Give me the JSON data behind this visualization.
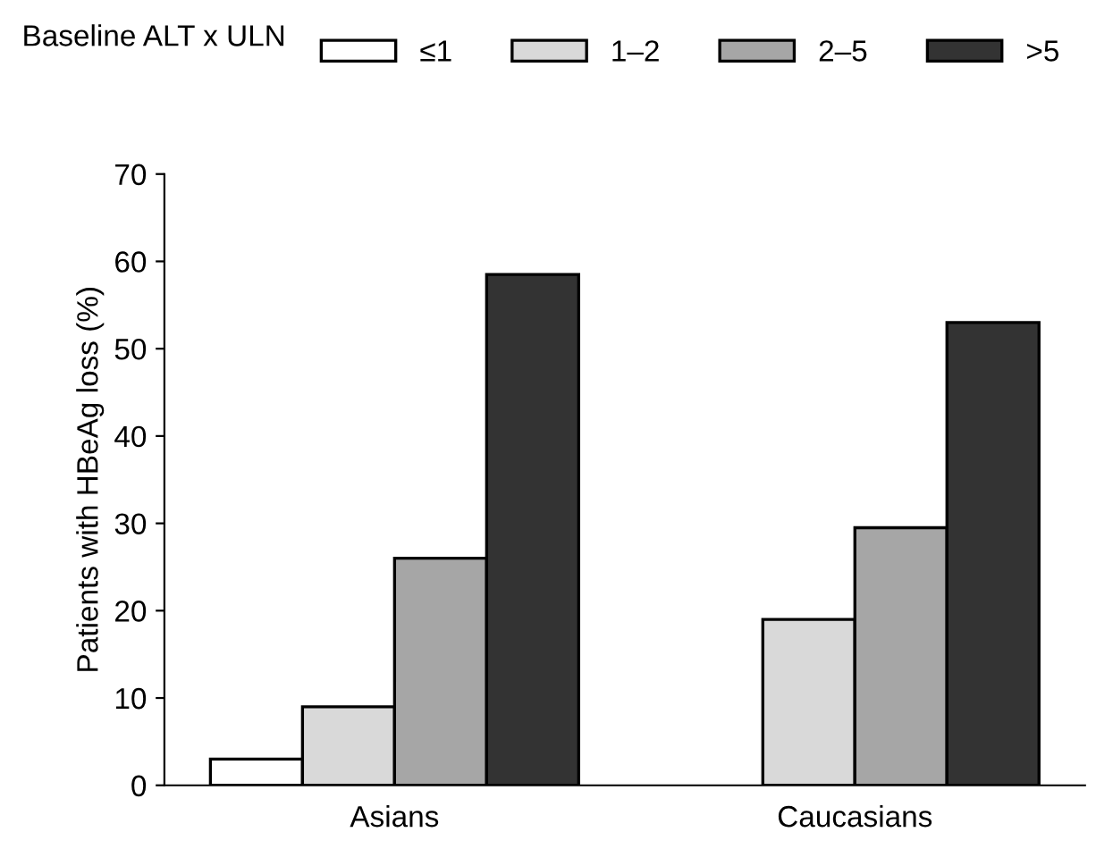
{
  "chart_data": {
    "type": "bar",
    "ylabel": "Patients with HBeAg loss (%)",
    "legend_title": "Baseline ALT x ULN",
    "categories": [
      "Asians",
      "Caucasians"
    ],
    "series": [
      {
        "name": "≤1",
        "color": "#ffffff",
        "values": [
          3,
          null
        ]
      },
      {
        "name": "1–2",
        "color": "#d9d9d9",
        "values": [
          9,
          19
        ]
      },
      {
        "name": "2–5",
        "color": "#a6a6a6",
        "values": [
          26,
          29.5
        ]
      },
      {
        "name": ">5",
        "color": "#333333",
        "values": [
          58.5,
          53
        ]
      }
    ],
    "ylim": [
      0,
      70
    ],
    "yticks": [
      0,
      10,
      20,
      30,
      40,
      50,
      60,
      70
    ],
    "grid": false,
    "legend": "top"
  }
}
